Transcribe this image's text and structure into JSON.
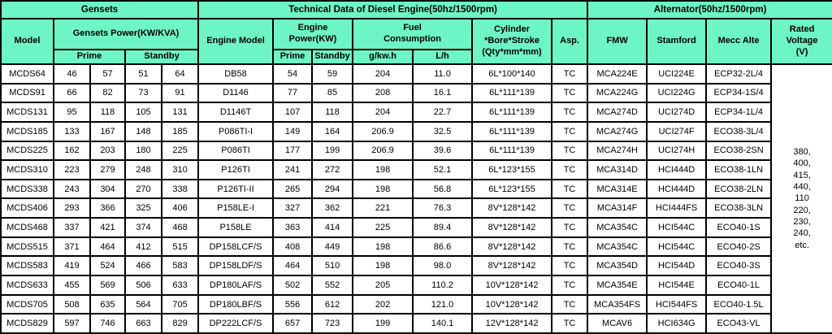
{
  "colors": {
    "header_bg": "#6ef5c5",
    "border": "#000000",
    "cell_bg": "#ffffff",
    "text": "#000000"
  },
  "table": {
    "groups": {
      "gensets": "Gensets",
      "engine": "Technical Data of Diesel Engine(50hz/1500rpm)",
      "alternator": "Alternator(50hz/1500rpm)"
    },
    "columns": {
      "model": "Model",
      "gensets_power": "Gensets Power(KW/KVA)",
      "engine_model": "Engine Model",
      "engine_power": "Engine\nPower(KW)",
      "fuel_consumption": "Fuel\nConsumption",
      "cylinder": "Cylinder\n*Bore*Stroke\n(Qty*mm*mm)",
      "asp": "Asp.",
      "fmw": "FMW",
      "stamford": "Stamford",
      "mecc_alte": "Mecc Alte",
      "rated_voltage": "Rated\nVoltage\n(V)",
      "prime": "Prime",
      "standby": "Standby",
      "g_kwh": "g/kw.h",
      "l_h": "L/h"
    },
    "rows": [
      [
        "MCDS64",
        "46",
        "57",
        "51",
        "64",
        "DB58",
        "54",
        "59",
        "204",
        "11.0",
        "6L*100*140",
        "TC",
        "MCA224E",
        "UCI224E",
        "ECP32-2L/4"
      ],
      [
        "MCDS91",
        "66",
        "82",
        "73",
        "91",
        "D1146",
        "77",
        "85",
        "208",
        "16.1",
        "6L*111*139",
        "TC",
        "MCA224G",
        "UCI224G",
        "ECP34-1S/4"
      ],
      [
        "MCDS131",
        "95",
        "118",
        "105",
        "131",
        "D1146T",
        "107",
        "118",
        "204",
        "22.7",
        "6L*111*139",
        "TC",
        "MCA274D",
        "UCI274D",
        "ECP34-1L/4"
      ],
      [
        "MCDS185",
        "133",
        "167",
        "148",
        "185",
        "P086TI-I",
        "149",
        "164",
        "206.9",
        "32.5",
        "6L*111*139",
        "TC",
        "MCA274G",
        "UCI274F",
        "ECO38-3L/4"
      ],
      [
        "MCDS225",
        "162",
        "203",
        "180",
        "225",
        "P086TI",
        "177",
        "199",
        "206.9",
        "39.6",
        "6L*111*139",
        "TC",
        "MCA274H",
        "UCI274H",
        "ECO38-2SN"
      ],
      [
        "MCDS310",
        "223",
        "279",
        "248",
        "310",
        "P126TI",
        "241",
        "272",
        "198",
        "52.1",
        "6L*123*155",
        "TC",
        "MCA314D",
        "HCI444D",
        "ECO38-1LN"
      ],
      [
        "MCDS338",
        "243",
        "304",
        "270",
        "338",
        "P126TI-II",
        "265",
        "294",
        "198",
        "56.8",
        "6L*123*155",
        "TC",
        "MCA314E",
        "HCI444D",
        "ECO38-2LN"
      ],
      [
        "MCDS406",
        "293",
        "366",
        "325",
        "406",
        "P158LE-I",
        "327",
        "362",
        "221",
        "76.3",
        "8V*128*142",
        "TC",
        "MCA314F",
        "HCI444FS",
        "ECO38-3LN"
      ],
      [
        "MCDS468",
        "337",
        "421",
        "374",
        "468",
        "P158LE",
        "363",
        "414",
        "225",
        "89.4",
        "8V*128*142",
        "TC",
        "MCA354C",
        "HCI544C",
        "ECO40-1S"
      ],
      [
        "MCDS515",
        "371",
        "464",
        "412",
        "515",
        "DP158LCF/S",
        "408",
        "449",
        "198",
        "86.6",
        "8V*128*142",
        "TC",
        "MCA354C",
        "HCI544C",
        "ECO40-2S"
      ],
      [
        "MCDS583",
        "419",
        "524",
        "466",
        "583",
        "DP158LDF/S",
        "464",
        "510",
        "198",
        "98.0",
        "8V*128*142",
        "TC",
        "MCA354D",
        "HCI544D",
        "ECO40-3S"
      ],
      [
        "MCDS633",
        "455",
        "569",
        "506",
        "633",
        "DP180LAF/S",
        "502",
        "552",
        "205",
        "110.2",
        "10V*128*142",
        "TC",
        "MCA354E",
        "HCI544E",
        "ECO40-1L"
      ],
      [
        "MCDS705",
        "508",
        "635",
        "564",
        "705",
        "DP180LBF/S",
        "556",
        "612",
        "202",
        "121.0",
        "10V*128*142",
        "TC",
        "MCA354FS",
        "HCI544FS",
        "ECO40-1.5L"
      ],
      [
        "MCDS829",
        "597",
        "746",
        "663",
        "829",
        "DP222LCF/S",
        "657",
        "723",
        "199",
        "140.1",
        "12V*128*142",
        "TC",
        "MCAV6",
        "HCI634G",
        "ECO43-VL"
      ]
    ],
    "rated_voltage_values": "380,\n400,\n415,\n440,\n110\n220,\n230,\n240,\netc."
  }
}
